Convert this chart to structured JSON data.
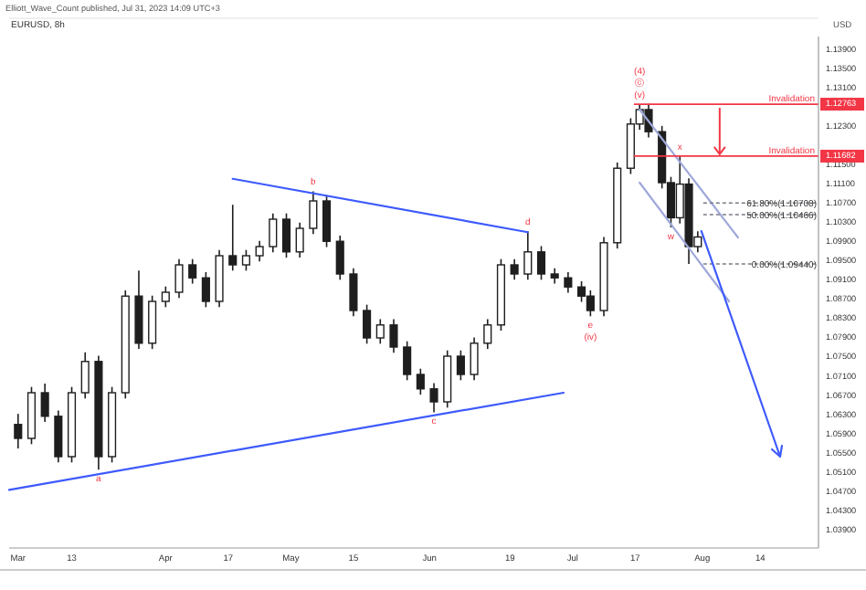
{
  "chart_data": {
    "type": "candlestick",
    "title": "EURUSD, 8h",
    "ylabel": "USD",
    "annotations": [
      "Elliott_Wave_Count published, Jul 31, 2023 14:09 UTC+3",
      {
        "text": "a",
        "x": "2023-03-19",
        "y": 1.0516
      },
      {
        "text": "b",
        "x": "2023-05-06",
        "y": 1.1095
      },
      {
        "text": "c",
        "x": "2023-06-02",
        "y": 1.0635
      },
      {
        "text": "d",
        "x": "2023-06-23",
        "y": 1.1012
      },
      {
        "text": "e",
        "x": "2023-07-07",
        "y": 1.0835
      },
      {
        "text": "(iv)",
        "x": "2023-07-07",
        "y": 1.0835
      },
      {
        "text": "(v)",
        "x": "2023-07-18",
        "y": 1.1276
      },
      {
        "text": "ⓒ",
        "x": "2023-07-18",
        "y": 1.1276
      },
      {
        "text": "(4)",
        "x": "2023-07-18",
        "y": 1.1276
      },
      {
        "text": "w",
        "x": "2023-07-25",
        "y": 1.102
      },
      {
        "text": "x",
        "x": "2023-07-27",
        "y": 1.1168
      }
    ],
    "x": [
      "2023-03-01",
      "2023-03-04",
      "2023-03-07",
      "2023-03-10",
      "2023-03-13",
      "2023-03-16",
      "2023-03-19",
      "2023-03-22",
      "2023-03-25",
      "2023-03-28",
      "2023-03-31",
      "2023-04-03",
      "2023-04-06",
      "2023-04-09",
      "2023-04-12",
      "2023-04-15",
      "2023-04-18",
      "2023-04-21",
      "2023-04-24",
      "2023-04-27",
      "2023-04-30",
      "2023-05-03",
      "2023-05-06",
      "2023-05-09",
      "2023-05-12",
      "2023-05-15",
      "2023-05-18",
      "2023-05-21",
      "2023-05-24",
      "2023-05-27",
      "2023-05-30",
      "2023-06-02",
      "2023-06-05",
      "2023-06-08",
      "2023-06-11",
      "2023-06-14",
      "2023-06-17",
      "2023-06-20",
      "2023-06-23",
      "2023-06-26",
      "2023-06-29",
      "2023-07-02",
      "2023-07-05",
      "2023-07-07",
      "2023-07-10",
      "2023-07-13",
      "2023-07-16",
      "2023-07-18",
      "2023-07-20",
      "2023-07-23",
      "2023-07-25",
      "2023-07-27",
      "2023-07-29",
      "2023-07-31"
    ],
    "ohlc": [
      [
        1.061,
        1.0632,
        1.056,
        1.0581
      ],
      [
        1.0581,
        1.0688,
        1.0569,
        1.0676
      ],
      [
        1.0676,
        1.0695,
        1.0615,
        1.0627
      ],
      [
        1.0627,
        1.0639,
        1.0531,
        1.0543
      ],
      [
        1.0543,
        1.0688,
        1.0531,
        1.0676
      ],
      [
        1.0676,
        1.076,
        1.0664,
        1.0741
      ],
      [
        1.0741,
        1.0753,
        1.0516,
        1.0543
      ],
      [
        1.0543,
        1.0688,
        1.0531,
        1.0676
      ],
      [
        1.0676,
        1.0889,
        1.0664,
        1.0877
      ],
      [
        1.0877,
        1.093,
        1.0767,
        1.0779
      ],
      [
        1.0779,
        1.0878,
        1.0767,
        1.0866
      ],
      [
        1.0866,
        1.0897,
        1.0854,
        1.0885
      ],
      [
        1.0885,
        1.0954,
        1.0873,
        1.0942
      ],
      [
        1.0942,
        1.0954,
        1.0903,
        1.0915
      ],
      [
        1.0915,
        1.0927,
        1.0854,
        1.0866
      ],
      [
        1.0866,
        1.0973,
        1.0854,
        1.0961
      ],
      [
        1.0961,
        1.1067,
        1.093,
        1.0942
      ],
      [
        1.0942,
        1.0973,
        1.093,
        1.0961
      ],
      [
        1.0961,
        1.0992,
        1.0949,
        1.098
      ],
      [
        1.098,
        1.1049,
        1.0968,
        1.1037
      ],
      [
        1.1037,
        1.1049,
        1.0957,
        1.0969
      ],
      [
        1.0969,
        1.103,
        1.0957,
        1.1018
      ],
      [
        1.1018,
        1.1095,
        1.1006,
        1.1075
      ],
      [
        1.1075,
        1.1087,
        1.0979,
        1.0991
      ],
      [
        1.0991,
        1.1003,
        1.0911,
        1.0923
      ],
      [
        1.0923,
        1.0935,
        1.0835,
        1.0847
      ],
      [
        1.0847,
        1.0859,
        1.0778,
        1.079
      ],
      [
        1.079,
        1.0829,
        1.0778,
        1.0817
      ],
      [
        1.0817,
        1.0829,
        1.0759,
        1.0771
      ],
      [
        1.0771,
        1.0783,
        1.0702,
        1.0714
      ],
      [
        1.0714,
        1.0726,
        1.0672,
        1.0684
      ],
      [
        1.0684,
        1.0696,
        1.0635,
        1.0657
      ],
      [
        1.0657,
        1.0764,
        1.0645,
        1.0752
      ],
      [
        1.0752,
        1.0764,
        1.0702,
        1.0714
      ],
      [
        1.0714,
        1.0791,
        1.0702,
        1.0779
      ],
      [
        1.0779,
        1.0829,
        1.0767,
        1.0817
      ],
      [
        1.0817,
        1.0954,
        1.0805,
        1.0942
      ],
      [
        1.0942,
        1.0954,
        1.0911,
        1.0923
      ],
      [
        1.0923,
        1.1012,
        1.0911,
        1.0969
      ],
      [
        1.0969,
        1.0981,
        1.0911,
        1.0923
      ],
      [
        1.0923,
        1.0935,
        1.0903,
        1.0915
      ],
      [
        1.0915,
        1.0927,
        1.0884,
        1.0896
      ],
      [
        1.0896,
        1.0908,
        1.0865,
        1.0877
      ],
      [
        1.0877,
        1.0889,
        1.0835,
        1.0847
      ],
      [
        1.0847,
        1.1,
        1.0835,
        1.0988
      ],
      [
        1.0988,
        1.1155,
        1.0976,
        1.1143
      ],
      [
        1.1143,
        1.1247,
        1.1131,
        1.1235
      ],
      [
        1.1235,
        1.1276,
        1.1223,
        1.1265
      ],
      [
        1.1265,
        1.1277,
        1.1207,
        1.1219
      ],
      [
        1.1219,
        1.1231,
        1.1101,
        1.1113
      ],
      [
        1.1113,
        1.1125,
        1.102,
        1.104
      ],
      [
        1.104,
        1.1168,
        1.1028,
        1.111
      ],
      [
        1.111,
        1.1122,
        1.0944,
        1.098
      ],
      [
        1.098,
        1.1012,
        1.0968,
        1.1
      ]
    ],
    "color": "#1e1e1e",
    "series": [
      {
        "type": "line",
        "color": "#3d5afe",
        "x": [
          "2023-02-27",
          "2023-07-01"
        ],
        "values": [
          1.0474,
          1.0676
        ]
      },
      {
        "type": "line",
        "color": "#3d5afe",
        "x": [
          "2023-04-18",
          "2023-06-23"
        ],
        "values": [
          1.1121,
          1.101
        ]
      },
      {
        "type": "line",
        "color": "#9fa8da",
        "x": [
          "2023-07-18",
          "2023-08-09"
        ],
        "values": [
          1.1265,
          1.0999
        ]
      },
      {
        "type": "line",
        "color": "#9fa8da",
        "x": [
          "2023-07-18",
          "2023-08-07"
        ],
        "values": [
          1.1113,
          1.0866
        ]
      }
    ],
    "ref_lines": [
      {
        "axis": "y",
        "value": 1.12763,
        "label": "Invalidation",
        "color": "#f23645",
        "line_style": "solid"
      },
      {
        "axis": "y",
        "value": 1.11682,
        "label": "Invalidation",
        "color": "#f23645",
        "line_style": "solid"
      },
      {
        "axis": "y",
        "value": 1.10708,
        "label": "61.80%(1.10708)",
        "color": "#787b86",
        "line_style": "dashed"
      },
      {
        "axis": "y",
        "value": 1.10466,
        "label": "50.00%(1.10466)",
        "color": "#787b86",
        "line_style": "dashed"
      },
      {
        "axis": "y",
        "value": 1.0944,
        "label": "0.00%(1.09440)",
        "color": "#787b86",
        "line_style": "dashed"
      }
    ],
    "xlim": [
      "2023-02-27",
      "2023-08-27"
    ],
    "xticks": [
      {
        "value": "2023-03-01",
        "label": "Mar"
      },
      {
        "value": "2023-03-13",
        "label": "13"
      },
      {
        "value": "2023-04-03",
        "label": "Apr"
      },
      {
        "value": "2023-04-17",
        "label": "17"
      },
      {
        "value": "2023-05-01",
        "label": "May"
      },
      {
        "value": "2023-05-15",
        "label": "15"
      },
      {
        "value": "2023-06-01",
        "label": "Jun"
      },
      {
        "value": "2023-06-19",
        "label": "19"
      },
      {
        "value": "2023-07-03",
        "label": "Jul"
      },
      {
        "value": "2023-07-17",
        "label": "17"
      },
      {
        "value": "2023-08-01",
        "label": "Aug"
      },
      {
        "value": "2023-08-14",
        "label": "14"
      }
    ],
    "ylim": [
      1.0353,
      1.1417
    ],
    "yticks": [
      {
        "value": 1.039,
        "label": "1.03900"
      },
      {
        "value": 1.043,
        "label": "1.04300"
      },
      {
        "value": 1.047,
        "label": "1.04700"
      },
      {
        "value": 1.051,
        "label": "1.05100"
      },
      {
        "value": 1.055,
        "label": "1.05500"
      },
      {
        "value": 1.059,
        "label": "1.05900"
      },
      {
        "value": 1.063,
        "label": "1.06300"
      },
      {
        "value": 1.067,
        "label": "1.06700"
      },
      {
        "value": 1.071,
        "label": "1.07100"
      },
      {
        "value": 1.075,
        "label": "1.07500"
      },
      {
        "value": 1.079,
        "label": "1.07900"
      },
      {
        "value": 1.083,
        "label": "1.08300"
      },
      {
        "value": 1.087,
        "label": "1.08700"
      },
      {
        "value": 1.091,
        "label": "1.09100"
      },
      {
        "value": 1.095,
        "label": "1.09500"
      },
      {
        "value": 1.099,
        "label": "1.09900"
      },
      {
        "value": 1.103,
        "label": "1.10300"
      },
      {
        "value": 1.107,
        "label": "1.10700"
      },
      {
        "value": 1.111,
        "label": "1.11100"
      },
      {
        "value": 1.115,
        "label": "1.11500"
      },
      {
        "value": 1.11682,
        "label": "1.11682"
      },
      {
        "value": 1.123,
        "label": "1.12300"
      },
      {
        "value": 1.12763,
        "label": "1.12763"
      },
      {
        "value": 1.131,
        "label": "1.13100"
      },
      {
        "value": 1.135,
        "label": "1.13500"
      },
      {
        "value": 1.139,
        "label": "1.13900"
      }
    ],
    "grid": false
  }
}
